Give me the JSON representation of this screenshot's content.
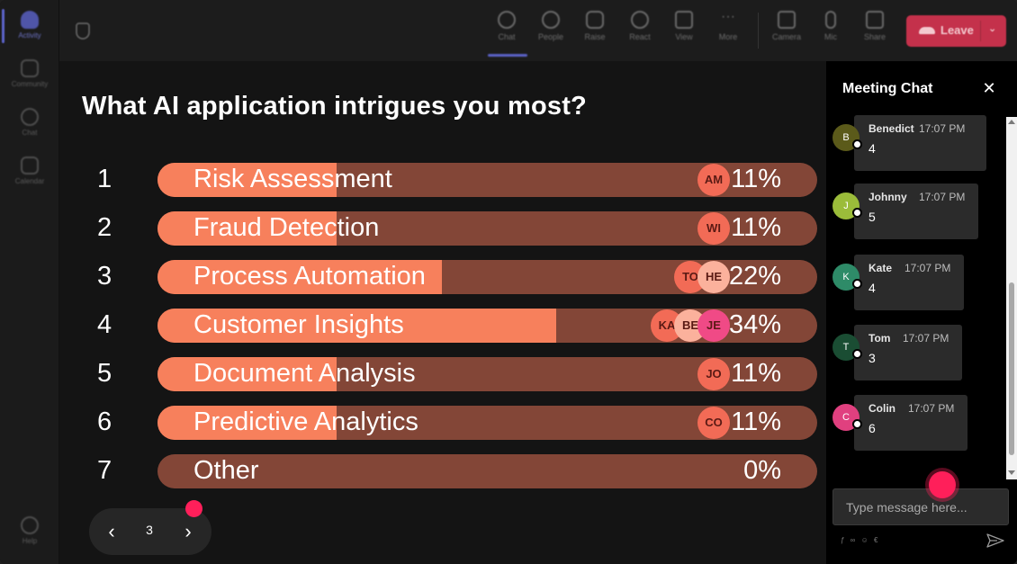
{
  "rail": {
    "items": [
      {
        "label": "Activity",
        "active": true
      },
      {
        "label": "Community",
        "active": false
      },
      {
        "label": "Chat",
        "active": false
      },
      {
        "label": "Calendar",
        "active": false
      }
    ],
    "help_label": "Help"
  },
  "toolbar": {
    "items": [
      {
        "label": "Chat",
        "icon": "chat-icon",
        "active": true
      },
      {
        "label": "People",
        "icon": "people-icon"
      },
      {
        "label": "Raise",
        "icon": "hand-icon"
      },
      {
        "label": "React",
        "icon": "smile-icon"
      },
      {
        "label": "View",
        "icon": "grid-icon"
      },
      {
        "label": "More",
        "icon": "more-icon"
      },
      {
        "label": "Camera",
        "icon": "camera-icon"
      },
      {
        "label": "Mic",
        "icon": "mic-icon"
      },
      {
        "label": "Share",
        "icon": "share-icon"
      }
    ],
    "leave_label": "Leave",
    "leave_color": "#c4314b"
  },
  "poll": {
    "title": "What AI application intrigues you most?",
    "options": [
      {
        "num": "1",
        "label": "Risk Assessment",
        "pct": "11%",
        "fraction": 0.11,
        "voters": [
          {
            "initials": "AM",
            "color": "#f26b56"
          }
        ]
      },
      {
        "num": "2",
        "label": "Fraud Detection",
        "pct": "11%",
        "fraction": 0.11,
        "voters": [
          {
            "initials": "WI",
            "color": "#f26b56"
          }
        ]
      },
      {
        "num": "3",
        "label": "Process Automation",
        "pct": "22%",
        "fraction": 0.22,
        "voters": [
          {
            "initials": "TO",
            "color": "#f26b56"
          },
          {
            "initials": "HE",
            "color": "#fbb19c"
          }
        ]
      },
      {
        "num": "4",
        "label": "Customer Insights",
        "pct": "34%",
        "fraction": 0.34,
        "voters": [
          {
            "initials": "KA",
            "color": "#f26b56"
          },
          {
            "initials": "BE",
            "color": "#fbb19c"
          },
          {
            "initials": "JE",
            "color": "#f04a86"
          }
        ]
      },
      {
        "num": "5",
        "label": "Document Analysis",
        "pct": "11%",
        "fraction": 0.11,
        "voters": [
          {
            "initials": "JO",
            "color": "#f26b56"
          }
        ]
      },
      {
        "num": "6",
        "label": "Predictive Analytics",
        "pct": "11%",
        "fraction": 0.11,
        "voters": [
          {
            "initials": "CO",
            "color": "#f26b56"
          }
        ]
      },
      {
        "num": "7",
        "label": "Other",
        "pct": "0%",
        "fraction": 0,
        "voters": []
      }
    ],
    "colors": {
      "fill": "#f7805c",
      "track": "#834637"
    },
    "pager": {
      "page": "3"
    }
  },
  "chat": {
    "title": "Meeting Chat",
    "messages": [
      {
        "initial": "B",
        "name": "Benedict",
        "time": "17:07 PM",
        "text": "4",
        "color": "#5b5a1a"
      },
      {
        "initial": "J",
        "name": "Johnny",
        "time": "17:07 PM",
        "text": "5",
        "color": "#9bbc3a"
      },
      {
        "initial": "K",
        "name": "Kate",
        "time": "17:07 PM",
        "text": "4",
        "color": "#2e8b68"
      },
      {
        "initial": "T",
        "name": "Tom",
        "time": "17:07 PM",
        "text": "3",
        "color": "#1a4d33"
      },
      {
        "initial": "C",
        "name": "Colin",
        "time": "17:07 PM",
        "text": "6",
        "color": "#e0407f"
      }
    ],
    "input_placeholder": "Type message here..."
  }
}
